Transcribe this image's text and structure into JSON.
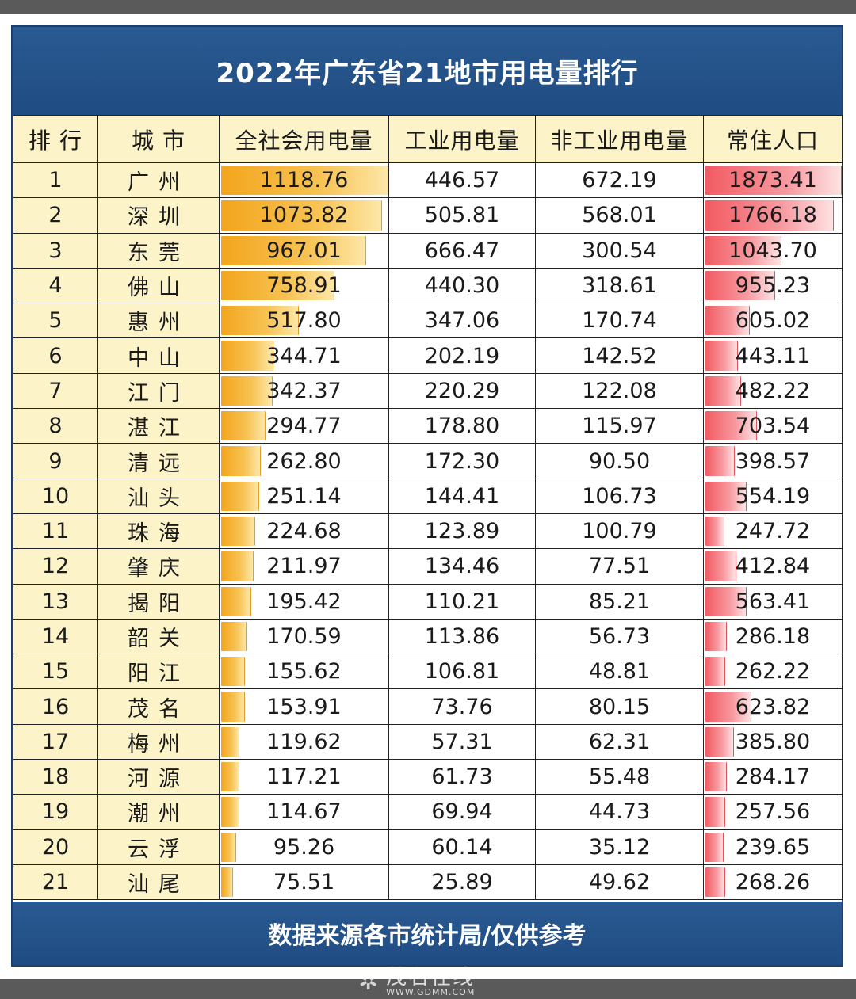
{
  "chart_data": {
    "type": "table",
    "title": "2022年广东省21地市用电量排行",
    "columns": [
      "排 行",
      "城 市",
      "全社会用电量",
      "工业用电量",
      "非工业用电量",
      "常住人口"
    ],
    "rows": [
      {
        "rank": "1",
        "city": "广州",
        "total": "1118.76",
        "industrial": "446.57",
        "nonindustrial": "672.19",
        "population": "1873.41"
      },
      {
        "rank": "2",
        "city": "深圳",
        "total": "1073.82",
        "industrial": "505.81",
        "nonindustrial": "568.01",
        "population": "1766.18"
      },
      {
        "rank": "3",
        "city": "东莞",
        "total": "967.01",
        "industrial": "666.47",
        "nonindustrial": "300.54",
        "population": "1043.70"
      },
      {
        "rank": "4",
        "city": "佛山",
        "total": "758.91",
        "industrial": "440.30",
        "nonindustrial": "318.61",
        "population": "955.23"
      },
      {
        "rank": "5",
        "city": "惠州",
        "total": "517.80",
        "industrial": "347.06",
        "nonindustrial": "170.74",
        "population": "605.02"
      },
      {
        "rank": "6",
        "city": "中山",
        "total": "344.71",
        "industrial": "202.19",
        "nonindustrial": "142.52",
        "population": "443.11"
      },
      {
        "rank": "7",
        "city": "江门",
        "total": "342.37",
        "industrial": "220.29",
        "nonindustrial": "122.08",
        "population": "482.22"
      },
      {
        "rank": "8",
        "city": "湛江",
        "total": "294.77",
        "industrial": "178.80",
        "nonindustrial": "115.97",
        "population": "703.54"
      },
      {
        "rank": "9",
        "city": "清远",
        "total": "262.80",
        "industrial": "172.30",
        "nonindustrial": "90.50",
        "population": "398.57"
      },
      {
        "rank": "10",
        "city": "汕头",
        "total": "251.14",
        "industrial": "144.41",
        "nonindustrial": "106.73",
        "population": "554.19"
      },
      {
        "rank": "11",
        "city": "珠海",
        "total": "224.68",
        "industrial": "123.89",
        "nonindustrial": "100.79",
        "population": "247.72"
      },
      {
        "rank": "12",
        "city": "肇庆",
        "total": "211.97",
        "industrial": "134.46",
        "nonindustrial": "77.51",
        "population": "412.84"
      },
      {
        "rank": "13",
        "city": "揭阳",
        "total": "195.42",
        "industrial": "110.21",
        "nonindustrial": "85.21",
        "population": "563.41"
      },
      {
        "rank": "14",
        "city": "韶关",
        "total": "170.59",
        "industrial": "113.86",
        "nonindustrial": "56.73",
        "population": "286.18"
      },
      {
        "rank": "15",
        "city": "阳江",
        "total": "155.62",
        "industrial": "106.81",
        "nonindustrial": "48.81",
        "population": "262.22"
      },
      {
        "rank": "16",
        "city": "茂名",
        "total": "153.91",
        "industrial": "73.76",
        "nonindustrial": "80.15",
        "population": "623.82"
      },
      {
        "rank": "17",
        "city": "梅州",
        "total": "119.62",
        "industrial": "57.31",
        "nonindustrial": "62.31",
        "population": "385.80"
      },
      {
        "rank": "18",
        "city": "河源",
        "total": "117.21",
        "industrial": "61.73",
        "nonindustrial": "55.48",
        "population": "284.17"
      },
      {
        "rank": "19",
        "city": "潮州",
        "total": "114.67",
        "industrial": "69.94",
        "nonindustrial": "44.73",
        "population": "257.56"
      },
      {
        "rank": "20",
        "city": "云浮",
        "total": "95.26",
        "industrial": "60.14",
        "nonindustrial": "35.12",
        "population": "239.65"
      },
      {
        "rank": "21",
        "city": "汕尾",
        "total": "75.51",
        "industrial": "25.89",
        "nonindustrial": "49.62",
        "population": "268.26"
      }
    ],
    "footer": "数据来源各市统计局/仅供参考",
    "colors": {
      "total_bar": "#f3a51d",
      "population_bar": "#f25b62",
      "header_bg": "#1f4c82",
      "label_bg": "#fdf3c9"
    }
  },
  "watermark": {
    "name": "茂名在线",
    "url": "WWW.GDMM.COM"
  }
}
